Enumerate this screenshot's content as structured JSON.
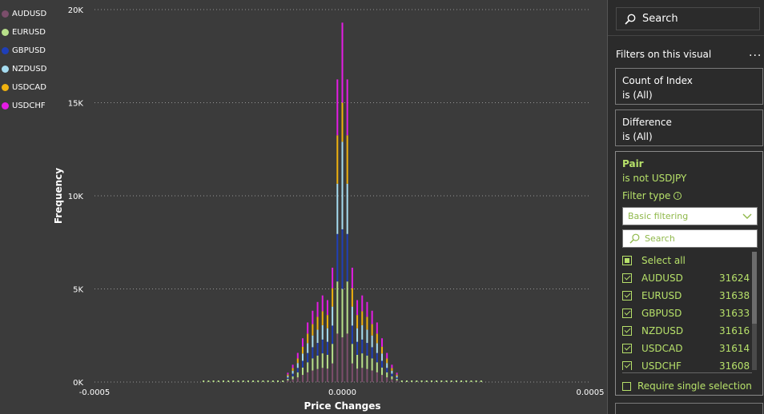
{
  "legend": [
    {
      "name": "AUDUSD",
      "color": "#7b4e6b"
    },
    {
      "name": "EURUSD",
      "color": "#b8e08a"
    },
    {
      "name": "GBPUSD",
      "color": "#1f3fb8"
    },
    {
      "name": "NZDUSD",
      "color": "#a6dcf0"
    },
    {
      "name": "USDCAD",
      "color": "#f0b20f"
    },
    {
      "name": "USDCHF",
      "color": "#e41ce4"
    }
  ],
  "chart_data": {
    "type": "bar",
    "stacked": true,
    "xlabel": "Price Changes",
    "ylabel": "Frequency",
    "xlim": [
      -0.0005,
      0.0005
    ],
    "ylim": [
      0,
      20000
    ],
    "y_ticks": [
      "0K",
      "5K",
      "10K",
      "15K",
      "20K"
    ],
    "x_ticks": [
      "-0.0005",
      "0.0000",
      "0.0005"
    ],
    "grid": true,
    "x": [
      -0.00011,
      -0.0001,
      -9e-05,
      -8e-05,
      -7e-05,
      -6e-05,
      -5e-05,
      -4e-05,
      -3e-05,
      -2e-05,
      -1e-05,
      0,
      1e-05,
      2e-05,
      3e-05,
      4e-05,
      5e-05,
      6e-05,
      7e-05,
      8e-05,
      9e-05,
      0.0001,
      0.00011
    ],
    "series": [
      {
        "name": "AUDUSD",
        "values": [
          80,
          150,
          250,
          380,
          520,
          620,
          700,
          760,
          720,
          1000,
          2600,
          2400,
          2600,
          1000,
          720,
          760,
          700,
          620,
          520,
          380,
          250,
          150,
          80
        ]
      },
      {
        "name": "EURUSD",
        "values": [
          90,
          160,
          270,
          400,
          540,
          650,
          720,
          780,
          740,
          1050,
          2800,
          2600,
          2800,
          1050,
          740,
          780,
          720,
          650,
          540,
          400,
          270,
          160,
          90
        ]
      },
      {
        "name": "GBPUSD",
        "values": [
          70,
          140,
          240,
          360,
          500,
          600,
          680,
          740,
          700,
          980,
          2550,
          3200,
          2550,
          980,
          700,
          740,
          680,
          600,
          500,
          360,
          240,
          140,
          70
        ]
      },
      {
        "name": "NZDUSD",
        "values": [
          85,
          155,
          260,
          390,
          530,
          630,
          710,
          770,
          730,
          1020,
          2700,
          4700,
          2700,
          1020,
          730,
          770,
          710,
          630,
          530,
          390,
          260,
          155,
          85
        ]
      },
      {
        "name": "USDCAD",
        "values": [
          75,
          145,
          245,
          370,
          510,
          610,
          690,
          750,
          710,
          990,
          2600,
          2100,
          2600,
          990,
          710,
          750,
          690,
          610,
          510,
          370,
          245,
          145,
          75
        ]
      },
      {
        "name": "USDCHF",
        "values": [
          100,
          180,
          300,
          450,
          600,
          720,
          800,
          850,
          800,
          1100,
          3000,
          4300,
          3000,
          1100,
          800,
          850,
          800,
          720,
          600,
          450,
          300,
          180,
          100
        ]
      }
    ]
  },
  "pane": {
    "search_label": "Search",
    "heading": "Filters on this visual",
    "more": "...",
    "cards": [
      {
        "title": "Count of Index",
        "sub": "is (All)"
      },
      {
        "title": "Difference",
        "sub": "is (All)"
      }
    ],
    "pair": {
      "title": "Pair",
      "sub": "is not USDJPY",
      "filter_type_label": "Filter type",
      "filter_type_value": "Basic filtering",
      "search_placeholder": "Search",
      "select_all": "Select all",
      "items": [
        {
          "label": "AUDUSD",
          "count": "31624"
        },
        {
          "label": "EURUSD",
          "count": "31638"
        },
        {
          "label": "GBPUSD",
          "count": "31633"
        },
        {
          "label": "NZDUSD",
          "count": "31616"
        },
        {
          "label": "USDCAD",
          "count": "31614"
        },
        {
          "label": "USDCHF",
          "count": "31608"
        }
      ],
      "require_single": "Require single selection"
    }
  }
}
